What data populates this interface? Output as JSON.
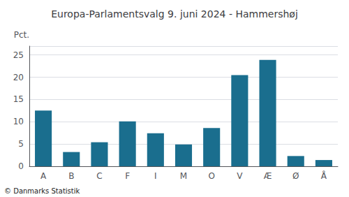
{
  "chart_data": {
    "type": "bar",
    "title": "Europa-Parlamentsvalg 9. juni 2024 - Hammershøj",
    "ylabel": "Pct.",
    "annotations": [
      "© Danmarks Statistik"
    ],
    "categories": [
      "A",
      "B",
      "C",
      "F",
      "I",
      "M",
      "O",
      "V",
      "Æ",
      "Ø",
      "Å"
    ],
    "values": [
      12.5,
      3.2,
      5.4,
      10.1,
      7.4,
      4.9,
      8.6,
      20.5,
      23.9,
      2.3,
      1.4
    ],
    "color": "#1a6e8e",
    "ylim": [
      0,
      27
    ],
    "yticks": [
      0,
      5,
      10,
      15,
      20,
      25
    ],
    "grid": true
  }
}
